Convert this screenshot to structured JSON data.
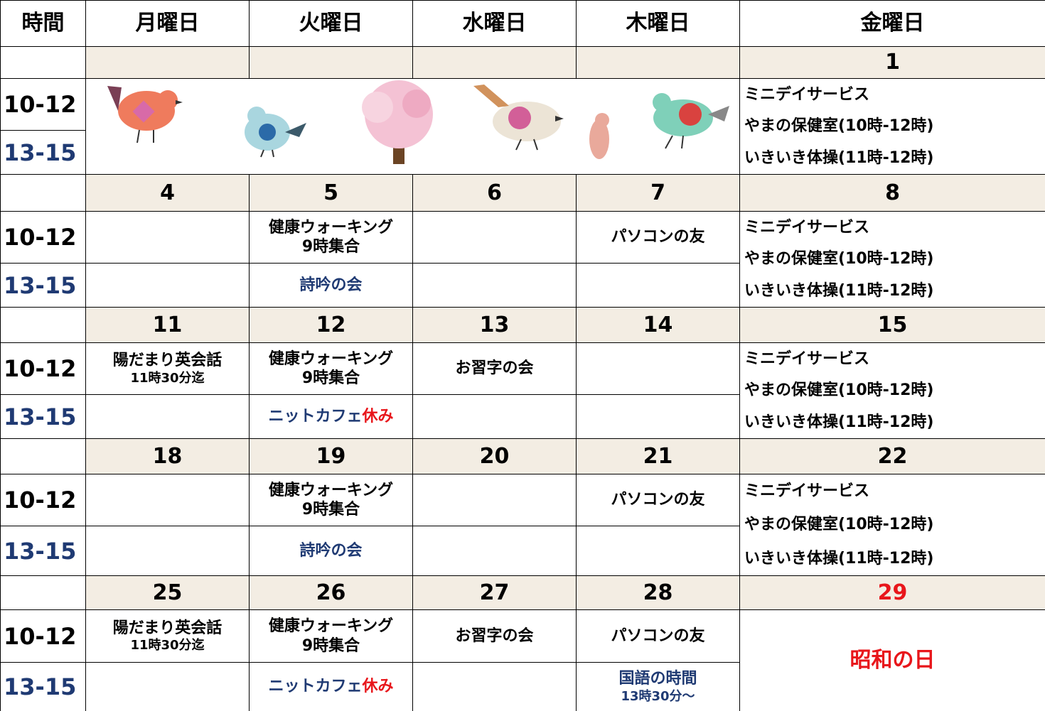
{
  "colors": {
    "text": "#000000",
    "pm": "#1f3a73",
    "red": "#e8161b",
    "date_bg": "#f3ede3"
  },
  "header": [
    "時間",
    "月曜日",
    "火曜日",
    "水曜日",
    "木曜日",
    "金曜日"
  ],
  "weeks": [
    {
      "dates": [
        null,
        null,
        null,
        null,
        1
      ],
      "am_time": "10-12",
      "pm_time": "13-15",
      "illustration": true,
      "fri": {
        "lines": [
          "ミニデイサービス",
          "やまの保健室(10時-12時)",
          "いきいき体操(11時-12時)"
        ]
      }
    },
    {
      "dates": [
        4,
        5,
        6,
        7,
        8
      ],
      "am_time": "10-12",
      "pm_time": "13-15",
      "am": [
        null,
        {
          "lines": [
            "健康ウォーキング",
            "9時集合"
          ]
        },
        null,
        {
          "lines": [
            "パソコンの友"
          ]
        }
      ],
      "pm": [
        null,
        {
          "lines": [
            "詩吟の会"
          ]
        },
        null,
        null
      ],
      "fri": {
        "lines": [
          "ミニデイサービス",
          "やまの保健室(10時-12時)",
          "いきいき体操(11時-12時)"
        ]
      }
    },
    {
      "dates": [
        11,
        12,
        13,
        14,
        15
      ],
      "am_time": "10-12",
      "pm_time": "13-15",
      "am": [
        {
          "lines": [
            "陽だまり英会話",
            {
              "text": "11時30分迄",
              "small": true
            }
          ]
        },
        {
          "lines": [
            "健康ウォーキング",
            "9時集合"
          ]
        },
        {
          "lines": [
            "お習字の会"
          ]
        },
        null
      ],
      "pm": [
        null,
        {
          "lines": [
            [
              {
                "text": "ニットカフェ"
              },
              {
                "text": "休み",
                "color": "#e8161b"
              }
            ]
          ]
        },
        null,
        null
      ],
      "fri": {
        "lines": [
          "ミニデイサービス",
          "やまの保健室(10時-12時)",
          "いきいき体操(11時-12時)"
        ]
      }
    },
    {
      "dates": [
        18,
        19,
        20,
        21,
        22
      ],
      "am_time": "10-12",
      "pm_time": "13-15",
      "am": [
        null,
        {
          "lines": [
            "健康ウォーキング",
            "9時集合"
          ]
        },
        null,
        {
          "lines": [
            "パソコンの友"
          ]
        }
      ],
      "pm": [
        null,
        {
          "lines": [
            "詩吟の会"
          ]
        },
        null,
        null
      ],
      "fri": {
        "lines": [
          "ミニデイサービス",
          "やまの保健室(10時-12時)",
          "いきいき体操(11時-12時)"
        ]
      }
    },
    {
      "dates": [
        25,
        26,
        27,
        28,
        29
      ],
      "am_time": "10-12",
      "pm_time": "13-15",
      "holiday": {
        "index": 4,
        "color": "#e8161b"
      },
      "am": [
        {
          "lines": [
            "陽だまり英会話",
            {
              "text": "11時30分迄",
              "small": true
            }
          ]
        },
        {
          "lines": [
            "健康ウォーキング",
            "9時集合"
          ]
        },
        {
          "lines": [
            "お習字の会"
          ]
        },
        {
          "lines": [
            "パソコンの友"
          ]
        }
      ],
      "pm": [
        null,
        {
          "lines": [
            [
              {
                "text": "ニットカフェ"
              },
              {
                "text": "休み",
                "color": "#e8161b"
              }
            ]
          ]
        },
        null,
        {
          "lines": [
            "国語の時間",
            {
              "text": "13時30分〜",
              "small": true
            }
          ]
        }
      ],
      "fri": {
        "lines": [
          "昭和の日"
        ],
        "color": "#e8161b",
        "center": true
      }
    }
  ]
}
